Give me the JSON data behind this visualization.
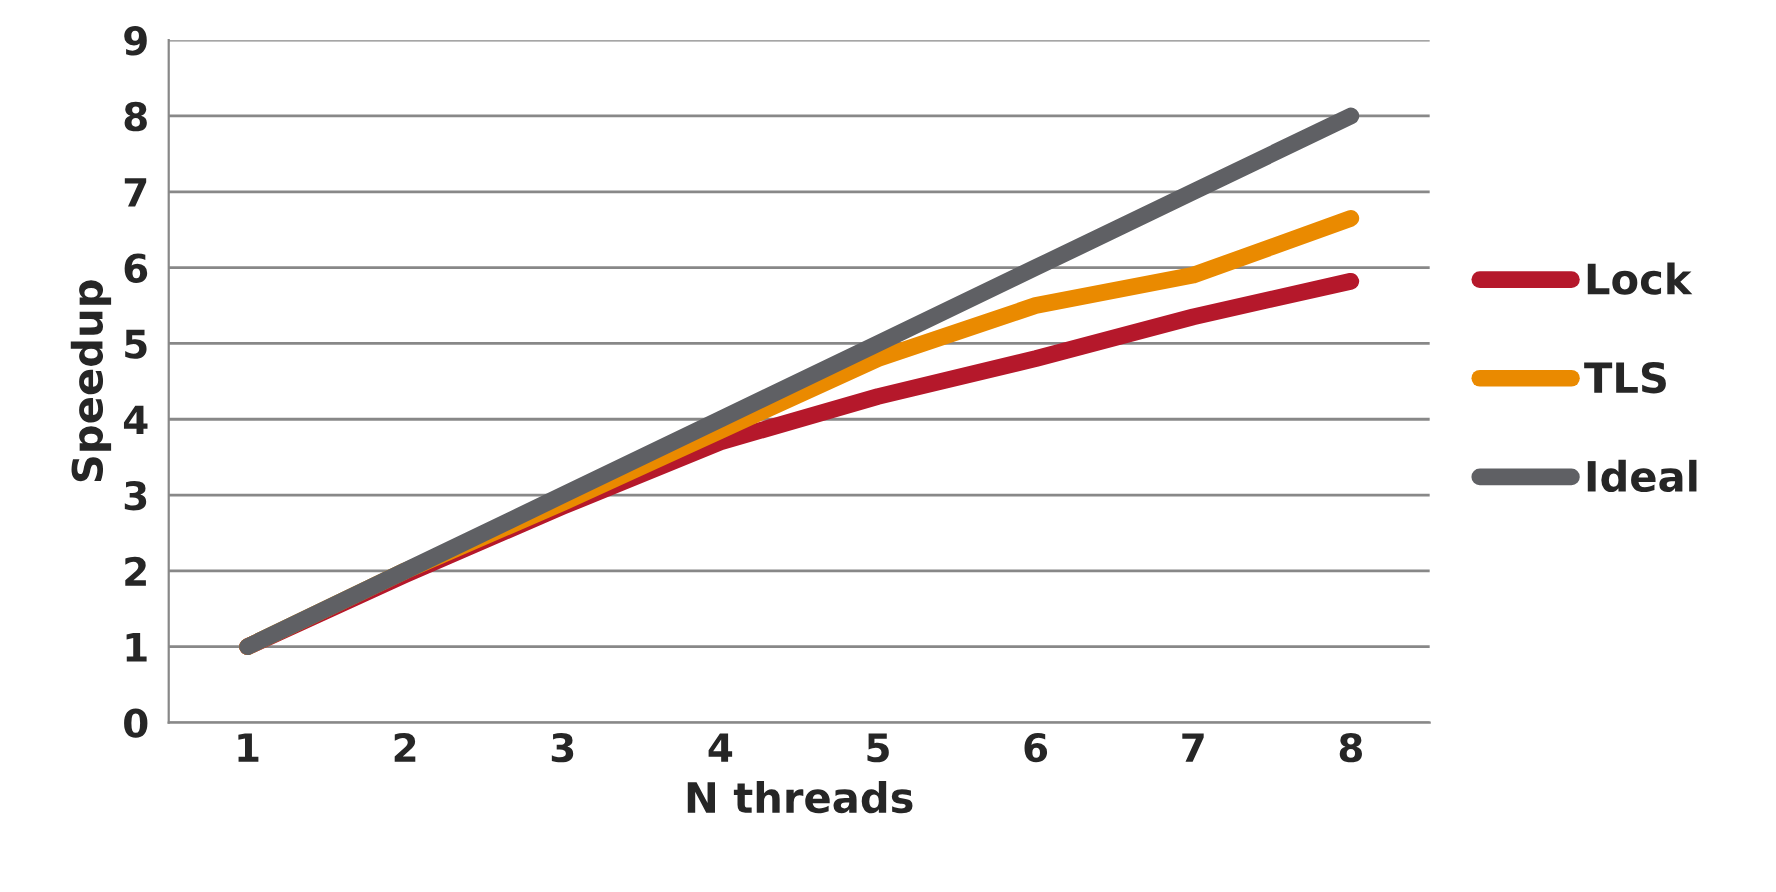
{
  "chart_data": {
    "type": "line",
    "xlabel": "N threads",
    "ylabel": "Speedup",
    "categories": [
      "1",
      "2",
      "3",
      "4",
      "5",
      "6",
      "7",
      "8"
    ],
    "series": [
      {
        "name": "Lock",
        "color": "#b5182b",
        "values": [
          1,
          1.95,
          2.85,
          3.7,
          4.3,
          4.8,
          5.35,
          5.82
        ]
      },
      {
        "name": "TLS",
        "color": "#ea8a00",
        "values": [
          1,
          2,
          2.9,
          3.85,
          4.8,
          5.5,
          5.9,
          6.65
        ]
      },
      {
        "name": "Ideal",
        "color": "#5f6064",
        "values": [
          1,
          2,
          3,
          4,
          5,
          6,
          7,
          8
        ]
      }
    ],
    "ylim": [
      0,
      9
    ],
    "yticks": [
      0,
      1,
      2,
      3,
      4,
      5,
      6,
      7,
      8,
      9
    ],
    "grid": "y",
    "legend": "right",
    "marker": "none",
    "line_style": "solid"
  }
}
